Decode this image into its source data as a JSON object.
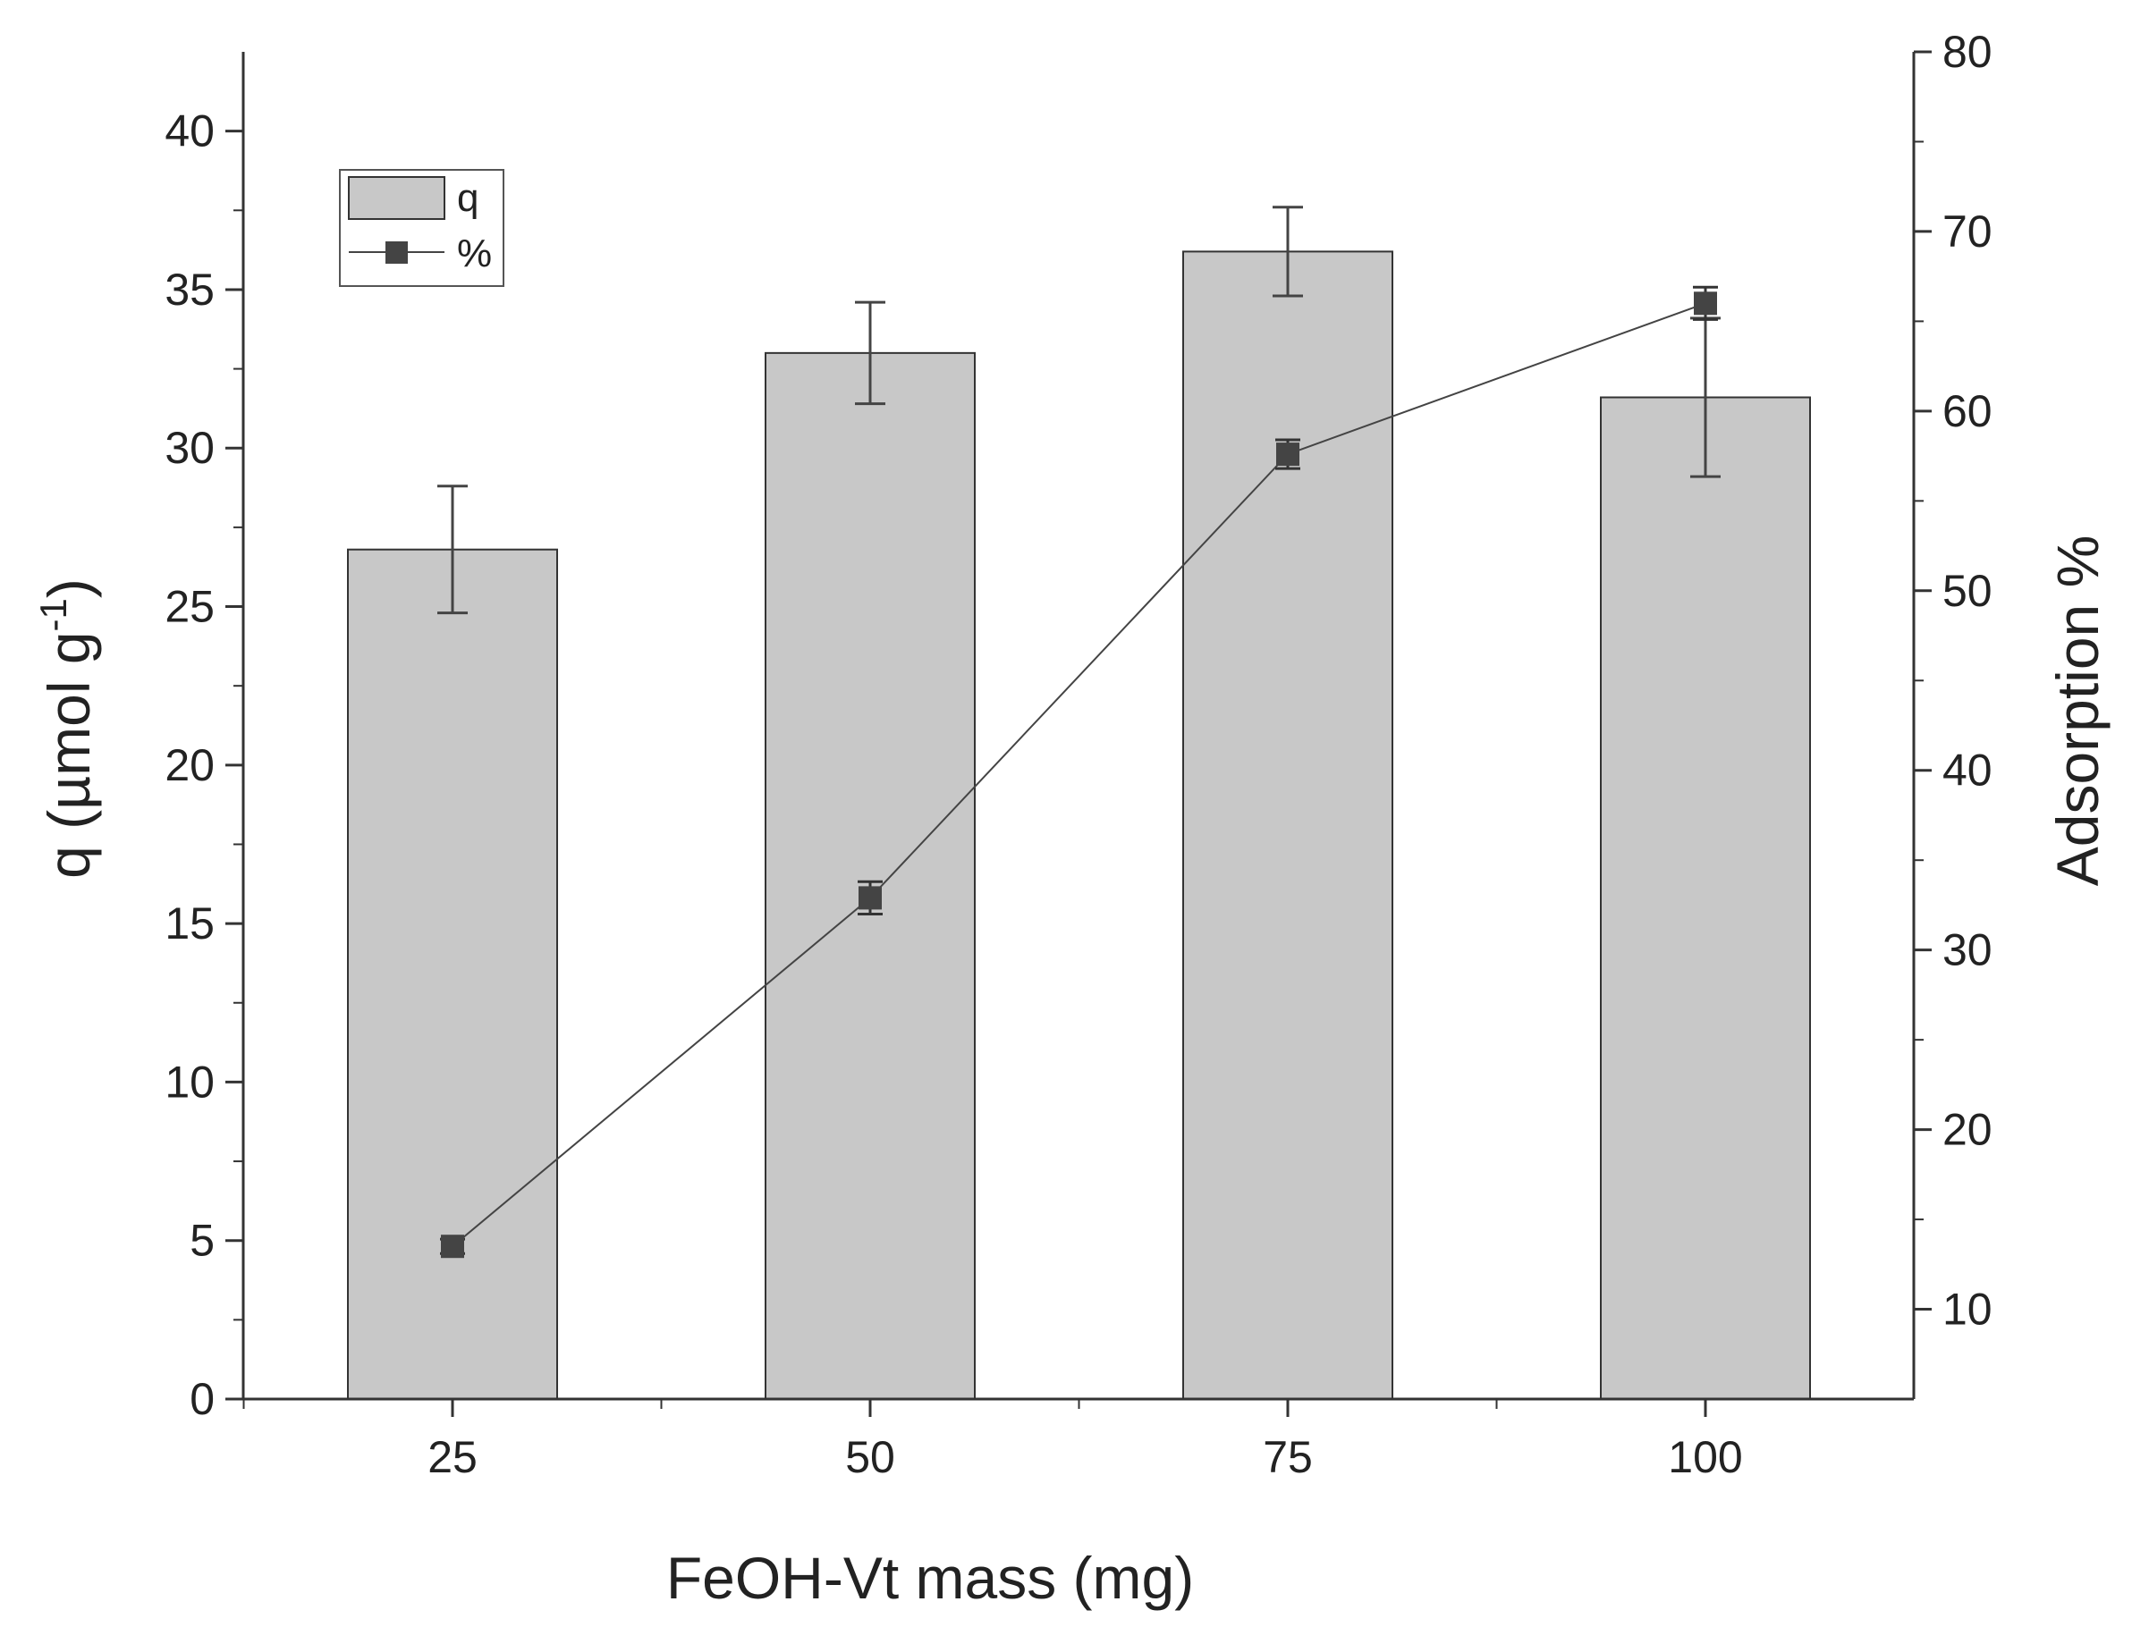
{
  "chart_data": {
    "type": "bar",
    "title": "",
    "xlabel": "FeOH-Vt mass (mg)",
    "ylabel": "q (µmol g",
    "ylabel_superscript": "-1",
    "ylabel_close": ")",
    "y2label": "Adsorption %",
    "categories": [
      "25",
      "50",
      "75",
      "100"
    ],
    "ylim": [
      0,
      42.5
    ],
    "y2lim": [
      5,
      80
    ],
    "yticks": [
      0,
      5,
      10,
      15,
      20,
      25,
      30,
      35,
      40
    ],
    "y2ticks": [
      10,
      20,
      30,
      40,
      50,
      60,
      70,
      80
    ],
    "legend_position": "top-left",
    "series": [
      {
        "name": "q",
        "kind": "bar",
        "axis": "left",
        "values": [
          26.8,
          33.0,
          36.2,
          31.6
        ],
        "errors": [
          2.0,
          1.6,
          1.4,
          2.5
        ],
        "color": "#c8c8c8",
        "edge_color": "#333333"
      },
      {
        "name": "%",
        "kind": "line",
        "axis": "right",
        "marker": "square",
        "values": [
          13.5,
          32.9,
          57.6,
          66.0
        ],
        "errors": [
          0.4,
          0.9,
          0.8,
          0.9
        ],
        "color": "#444444"
      }
    ]
  }
}
